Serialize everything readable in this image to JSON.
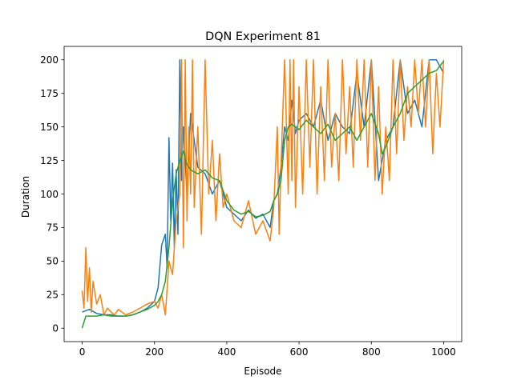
{
  "chart_data": {
    "type": "line",
    "title": "DQN Experiment 81",
    "xlabel": "Episode",
    "ylabel": "Duration",
    "xlim": [
      -50,
      1050
    ],
    "ylim": [
      -10,
      210
    ],
    "xticks": [
      0,
      200,
      400,
      600,
      800,
      1000
    ],
    "yticks": [
      0,
      25,
      50,
      75,
      100,
      125,
      150,
      175,
      200
    ],
    "grid": false,
    "legend": "none",
    "series": [
      {
        "color": "#1f77b4",
        "x": [
          0,
          20,
          40,
          60,
          80,
          100,
          120,
          140,
          160,
          180,
          200,
          210,
          220,
          230,
          235,
          240,
          245,
          250,
          255,
          260,
          265,
          270,
          275,
          280,
          290,
          300,
          320,
          340,
          360,
          380,
          400,
          420,
          440,
          460,
          480,
          500,
          520,
          530,
          540,
          550,
          560,
          570,
          580,
          590,
          600,
          620,
          640,
          660,
          680,
          700,
          720,
          740,
          760,
          780,
          800,
          820,
          840,
          860,
          880,
          900,
          920,
          940,
          960,
          980,
          1000
        ],
        "values": [
          12,
          14,
          11,
          10,
          10,
          9,
          9,
          10,
          12,
          15,
          20,
          30,
          62,
          70,
          45,
          142,
          80,
          123,
          60,
          118,
          70,
          200,
          110,
          150,
          100,
          160,
          120,
          115,
          100,
          110,
          90,
          85,
          80,
          88,
          82,
          85,
          75,
          95,
          100,
          120,
          150,
          140,
          170,
          145,
          155,
          160,
          150,
          170,
          140,
          160,
          150,
          145,
          190,
          150,
          200,
          110,
          140,
          150,
          200,
          160,
          170,
          150,
          200,
          200,
          190
        ]
      },
      {
        "color": "#ff7f0e",
        "x": [
          0,
          5,
          10,
          15,
          20,
          25,
          30,
          40,
          50,
          60,
          70,
          80,
          90,
          100,
          120,
          140,
          160,
          180,
          200,
          210,
          220,
          230,
          240,
          250,
          260,
          270,
          275,
          280,
          285,
          290,
          295,
          300,
          305,
          310,
          320,
          330,
          340,
          350,
          360,
          370,
          380,
          390,
          400,
          420,
          440,
          460,
          480,
          500,
          520,
          530,
          540,
          545,
          550,
          560,
          570,
          575,
          580,
          585,
          590,
          600,
          610,
          620,
          630,
          640,
          650,
          660,
          670,
          680,
          690,
          700,
          710,
          720,
          730,
          740,
          750,
          760,
          770,
          780,
          790,
          800,
          810,
          820,
          830,
          840,
          850,
          860,
          870,
          880,
          890,
          900,
          910,
          920,
          930,
          940,
          950,
          960,
          970,
          980,
          990,
          1000
        ],
        "values": [
          28,
          15,
          60,
          20,
          45,
          12,
          35,
          18,
          25,
          10,
          15,
          12,
          10,
          14,
          10,
          12,
          15,
          18,
          20,
          15,
          25,
          10,
          50,
          40,
          80,
          100,
          200,
          60,
          200,
          80,
          150,
          100,
          200,
          90,
          150,
          70,
          200,
          100,
          140,
          80,
          130,
          90,
          100,
          80,
          75,
          95,
          70,
          80,
          65,
          90,
          150,
          70,
          120,
          200,
          100,
          200,
          110,
          200,
          90,
          180,
          100,
          200,
          120,
          200,
          100,
          180,
          110,
          200,
          120,
          160,
          110,
          200,
          130,
          180,
          120,
          200,
          140,
          200,
          120,
          200,
          110,
          180,
          100,
          150,
          110,
          200,
          130,
          200,
          140,
          180,
          150,
          200,
          160,
          200,
          150,
          200,
          130,
          190,
          150,
          200
        ]
      },
      {
        "color": "#2ca02c",
        "x": [
          0,
          10,
          20,
          40,
          60,
          80,
          100,
          120,
          140,
          160,
          180,
          200,
          210,
          220,
          230,
          240,
          250,
          260,
          270,
          280,
          290,
          300,
          320,
          340,
          360,
          380,
          400,
          420,
          440,
          460,
          480,
          500,
          520,
          530,
          540,
          550,
          560,
          570,
          580,
          600,
          620,
          640,
          660,
          680,
          700,
          720,
          740,
          760,
          780,
          800,
          820,
          830,
          840,
          860,
          880,
          900,
          920,
          940,
          960,
          980,
          1000
        ],
        "values": [
          0,
          9,
          9,
          9,
          10,
          9,
          9,
          9,
          10,
          12,
          14,
          17,
          20,
          25,
          35,
          60,
          95,
          115,
          125,
          132,
          122,
          118,
          115,
          118,
          112,
          110,
          95,
          88,
          85,
          87,
          83,
          84,
          87,
          95,
          100,
          110,
          140,
          150,
          152,
          148,
          155,
          150,
          145,
          152,
          140,
          145,
          150,
          140,
          150,
          160,
          145,
          130,
          135,
          150,
          160,
          175,
          180,
          185,
          190,
          192,
          199
        ]
      }
    ]
  }
}
